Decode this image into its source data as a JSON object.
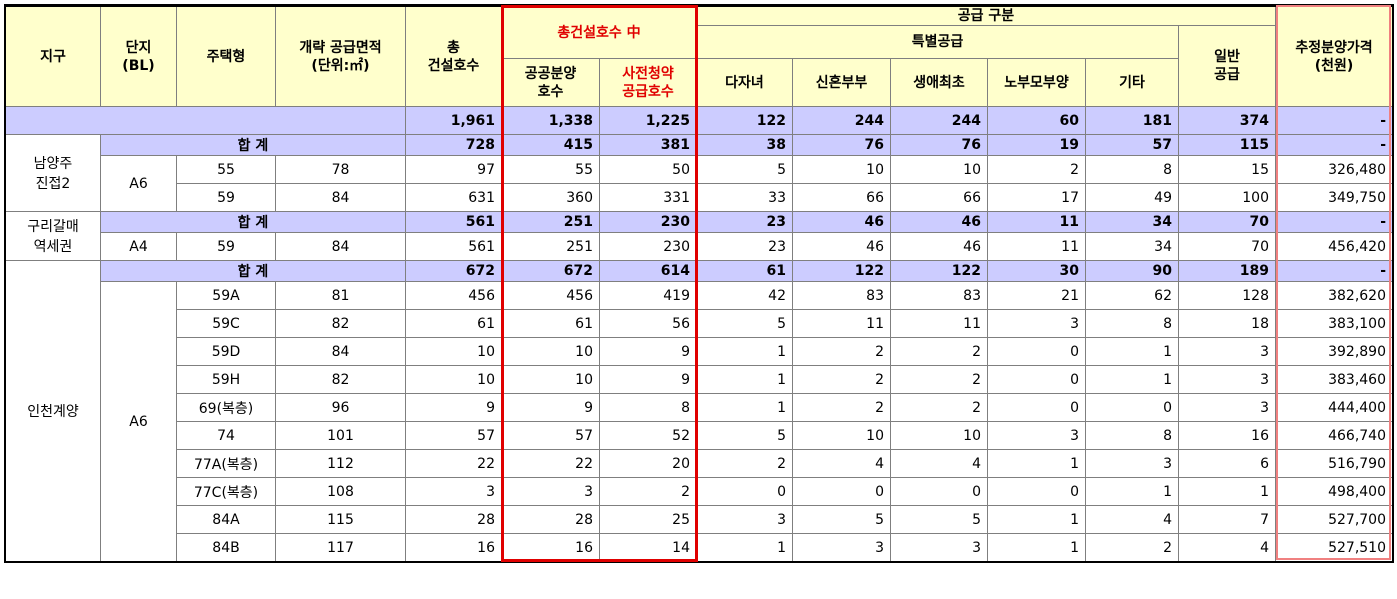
{
  "header": {
    "district": "지구",
    "block": "단지\n(BL)",
    "type": "주택형",
    "area": "개략 공급면적\n(단위:㎡)",
    "total_units": "총\n건설호수",
    "among_total": "총건설호수 中",
    "public_sale": "공공분양\n호수",
    "pre_subscription": "사전청약\n공급호수",
    "supply_type": "공급 구분",
    "special": "특별공급",
    "multi_child": "다자녀",
    "newlywed": "신혼부부",
    "first_time": "생애최초",
    "elderly_parents": "노부모부양",
    "others": "기타",
    "general": "일반\n공급",
    "est_price": "추정분양가격\n(천원)"
  },
  "grand_total": [
    "1,961",
    "1,338",
    "1,225",
    "122",
    "244",
    "244",
    "60",
    "181",
    "374",
    "-"
  ],
  "subtotal_label": "합 계",
  "districts": [
    {
      "name": "남양주\n진접2",
      "subtotal": [
        "728",
        "415",
        "381",
        "38",
        "76",
        "76",
        "19",
        "57",
        "115",
        "-"
      ],
      "block": "A6",
      "rows": [
        [
          "55",
          "78",
          "97",
          "55",
          "50",
          "5",
          "10",
          "10",
          "2",
          "8",
          "15",
          "326,480"
        ],
        [
          "59",
          "84",
          "631",
          "360",
          "331",
          "33",
          "66",
          "66",
          "17",
          "49",
          "100",
          "349,750"
        ]
      ]
    },
    {
      "name": "구리갈매\n역세권",
      "subtotal": [
        "561",
        "251",
        "230",
        "23",
        "46",
        "46",
        "11",
        "34",
        "70",
        "-"
      ],
      "block": "A4",
      "rows": [
        [
          "59",
          "84",
          "561",
          "251",
          "230",
          "23",
          "46",
          "46",
          "11",
          "34",
          "70",
          "456,420"
        ]
      ]
    },
    {
      "name": "인천계양",
      "subtotal": [
        "672",
        "672",
        "614",
        "61",
        "122",
        "122",
        "30",
        "90",
        "189",
        "-"
      ],
      "block": "A6",
      "rows": [
        [
          "59A",
          "81",
          "456",
          "456",
          "419",
          "42",
          "83",
          "83",
          "21",
          "62",
          "128",
          "382,620"
        ],
        [
          "59C",
          "82",
          "61",
          "61",
          "56",
          "5",
          "11",
          "11",
          "3",
          "8",
          "18",
          "383,100"
        ],
        [
          "59D",
          "84",
          "10",
          "10",
          "9",
          "1",
          "2",
          "2",
          "0",
          "1",
          "3",
          "392,890"
        ],
        [
          "59H",
          "82",
          "10",
          "10",
          "9",
          "1",
          "2",
          "2",
          "0",
          "1",
          "3",
          "383,460"
        ],
        [
          "69(복층)",
          "96",
          "9",
          "9",
          "8",
          "1",
          "2",
          "2",
          "0",
          "0",
          "3",
          "444,400"
        ],
        [
          "74",
          "101",
          "57",
          "57",
          "52",
          "5",
          "10",
          "10",
          "3",
          "8",
          "16",
          "466,740"
        ],
        [
          "77A(복층)",
          "112",
          "22",
          "22",
          "20",
          "2",
          "4",
          "4",
          "1",
          "3",
          "6",
          "516,790"
        ],
        [
          "77C(복층)",
          "108",
          "3",
          "3",
          "2",
          "0",
          "0",
          "0",
          "0",
          "1",
          "1",
          "498,400"
        ],
        [
          "84A",
          "115",
          "28",
          "28",
          "25",
          "3",
          "5",
          "5",
          "1",
          "4",
          "7",
          "527,700"
        ],
        [
          "84B",
          "117",
          "16",
          "16",
          "14",
          "1",
          "3",
          "3",
          "1",
          "2",
          "4",
          "527,510"
        ]
      ]
    }
  ]
}
